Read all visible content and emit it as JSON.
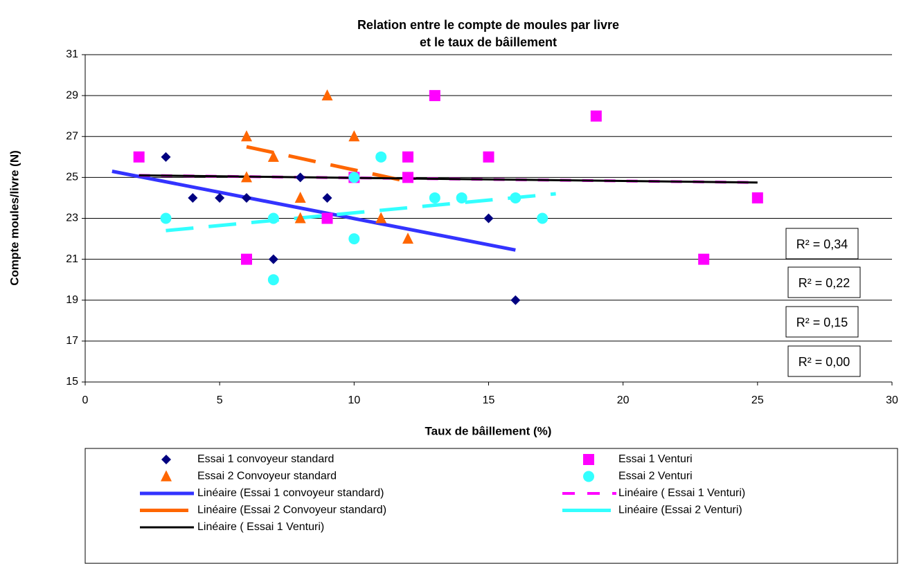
{
  "chart_data": {
    "type": "scatter",
    "title": [
      "Relation entre le compte de moules par livre",
      "et le taux de bâillement"
    ],
    "xlabel": "Taux de bâillement (%)",
    "ylabel": "Compte moules/livre (N)",
    "xlim": [
      0,
      30
    ],
    "xticks": [
      0,
      5,
      10,
      15,
      20,
      25,
      30
    ],
    "ylim": [
      15,
      31
    ],
    "yticks": [
      15,
      17,
      19,
      21,
      23,
      25,
      27,
      29,
      31
    ],
    "grid": true,
    "series": [
      {
        "name": "Essai 1 convoyeur standard",
        "color": "#000080",
        "marker": "diamond",
        "x": [
          3,
          4,
          5,
          6,
          7,
          8,
          9,
          15,
          16
        ],
        "values": [
          26,
          24,
          24,
          24,
          21,
          25,
          24,
          23,
          19
        ]
      },
      {
        "name": "Essai 1 Venturi",
        "color": "#ff00ff",
        "marker": "square",
        "x": [
          2,
          6,
          9,
          10,
          12,
          12,
          13,
          15,
          19,
          23,
          25
        ],
        "values": [
          26,
          21,
          23,
          25,
          26,
          25,
          29,
          26,
          28,
          21,
          24
        ]
      },
      {
        "name": "Essai 2 Convoyeur standard",
        "color": "#ff6600",
        "marker": "triangle",
        "x": [
          6,
          6,
          7,
          8,
          8,
          9,
          10,
          11,
          12
        ],
        "values": [
          27,
          25,
          26,
          24,
          23,
          29,
          27,
          23,
          22
        ]
      },
      {
        "name": "Essai 2 Venturi",
        "color": "#33ffff",
        "marker": "circle",
        "x": [
          3,
          7,
          7,
          10,
          10,
          11,
          13,
          14,
          16,
          17
        ],
        "values": [
          23,
          23,
          20,
          22,
          25,
          26,
          24,
          24,
          24,
          23
        ]
      },
      {
        "name": "Linéaire (Essai 1 convoyeur standard)",
        "color": "#3333ff",
        "line": "solid",
        "width": 5,
        "x": [
          1,
          16
        ],
        "values": [
          25.3,
          21.45
        ]
      },
      {
        "name": "Linéaire ( Essai 1 Venturi)",
        "color": "#ff00ff",
        "line": "dash",
        "width": 4,
        "x": [
          2,
          25
        ],
        "values": [
          25.1,
          24.75
        ]
      },
      {
        "name": "Linéaire (Essai 2 Convoyeur standard)",
        "color": "#ff6600",
        "line": "dash",
        "width": 5,
        "x": [
          6,
          12
        ],
        "values": [
          26.5,
          24.8
        ]
      },
      {
        "name": "Linéaire (Essai 2 Venturi)",
        "color": "#33ffff",
        "line": "dash",
        "width": 5,
        "x": [
          3,
          17.5
        ],
        "values": [
          22.4,
          24.2
        ]
      },
      {
        "name": "Linéaire ( Essai 1 Venturi)",
        "color": "#000000",
        "line": "solid",
        "width": 3,
        "x": [
          2,
          25
        ],
        "values": [
          25.1,
          24.75
        ]
      }
    ],
    "annotations": [
      {
        "text": "R² = 0,34",
        "color": "#0000ff"
      },
      {
        "text": "R² = 0,22",
        "color": "#33ffff"
      },
      {
        "text": "R² = 0,15",
        "color": "#ff6600"
      },
      {
        "text": "R² = 0,00",
        "color": "#ff00ff"
      }
    ]
  }
}
